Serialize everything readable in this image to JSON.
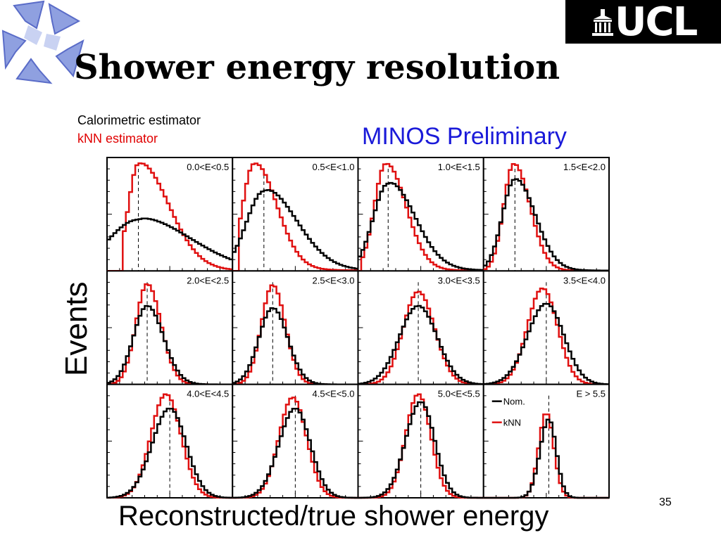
{
  "slide": {
    "title": "Shower energy resolution",
    "legend_top": [
      "Calorimetric estimator",
      "kNN estimator"
    ],
    "preliminary": "MINOS Preliminary",
    "page_number": "35",
    "logo_text": "UCL"
  },
  "colors": {
    "nominal": "#000000",
    "knn": "#e01010",
    "preliminary": "#1a1ad9",
    "ucl_logo_bg": "#000000"
  },
  "chart_data": {
    "type": "line",
    "xlabel": "Reconstructed/true shower energy",
    "ylabel": "Events",
    "grid": false,
    "legend": [
      "Nom.",
      "kNN"
    ],
    "panels": [
      {
        "label": "0.0<E<0.5",
        "nom": {
          "peak": 0.25,
          "sigma_l": 0.24,
          "sigma_r": 0.42,
          "height": 0.47,
          "tail": 0.05
        },
        "knn": {
          "peak": 0.25,
          "sigma_l": 0.08,
          "sigma_r": 0.24,
          "height": 0.98,
          "tail": 0.03,
          "start": 0.12
        }
      },
      {
        "label": "0.5<E<1.0",
        "nom": {
          "peak": 0.25,
          "sigma_l": 0.14,
          "sigma_r": 0.26,
          "height": 0.73,
          "tail": 0.05
        },
        "knn": {
          "peak": 0.17,
          "sigma_l": 0.09,
          "sigma_r": 0.18,
          "height": 0.98,
          "tail": 0.03,
          "start": 0.04
        }
      },
      {
        "label": "1.0<E<1.5",
        "nom": {
          "peak": 0.24,
          "sigma_l": 0.12,
          "sigma_r": 0.21,
          "height": 0.8,
          "tail": 0.04
        },
        "knn": {
          "peak": 0.22,
          "sigma_l": 0.09,
          "sigma_r": 0.16,
          "height": 0.98,
          "tail": 0.02,
          "start": 0.02
        }
      },
      {
        "label": "1.5<E<2.0",
        "nom": {
          "peak": 0.25,
          "sigma_l": 0.1,
          "sigma_r": 0.16,
          "height": 0.84,
          "tail": 0.02
        },
        "knn": {
          "peak": 0.24,
          "sigma_l": 0.08,
          "sigma_r": 0.13,
          "height": 0.98,
          "tail": 0.01,
          "start": 0.0
        }
      },
      {
        "label": "2.0<E<2.5",
        "nom": {
          "peak": 0.32,
          "sigma_l": 0.11,
          "sigma_r": 0.13,
          "height": 0.72,
          "tail": 0.0
        },
        "knn": {
          "peak": 0.32,
          "sigma_l": 0.09,
          "sigma_r": 0.11,
          "height": 0.92,
          "tail": 0.0,
          "start": 0.0
        }
      },
      {
        "label": "2.5<E<3.0",
        "nom": {
          "peak": 0.32,
          "sigma_l": 0.11,
          "sigma_r": 0.12,
          "height": 0.7,
          "tail": 0.0
        },
        "knn": {
          "peak": 0.32,
          "sigma_l": 0.09,
          "sigma_r": 0.1,
          "height": 0.91,
          "tail": 0.0,
          "start": 0.0
        }
      },
      {
        "label": "3.0<E<3.5",
        "nom": {
          "peak": 0.48,
          "sigma_l": 0.15,
          "sigma_r": 0.15,
          "height": 0.72,
          "tail": 0.0
        },
        "knn": {
          "peak": 0.48,
          "sigma_l": 0.12,
          "sigma_r": 0.13,
          "height": 0.85,
          "tail": 0.0,
          "start": 0.0
        }
      },
      {
        "label": "3.5<E<4.0",
        "nom": {
          "peak": 0.5,
          "sigma_l": 0.15,
          "sigma_r": 0.14,
          "height": 0.74,
          "tail": 0.0
        },
        "knn": {
          "peak": 0.47,
          "sigma_l": 0.12,
          "sigma_r": 0.12,
          "height": 0.88,
          "tail": 0.0,
          "start": 0.0
        }
      },
      {
        "label": "4.0<E<4.5",
        "nom": {
          "peak": 0.5,
          "sigma_l": 0.14,
          "sigma_r": 0.13,
          "height": 0.82,
          "tail": 0.0
        },
        "knn": {
          "peak": 0.47,
          "sigma_l": 0.12,
          "sigma_r": 0.12,
          "height": 0.95,
          "tail": 0.0,
          "start": 0.0
        }
      },
      {
        "label": "4.5<E<5.0",
        "nom": {
          "peak": 0.5,
          "sigma_l": 0.13,
          "sigma_r": 0.12,
          "height": 0.82,
          "tail": 0.0
        },
        "knn": {
          "peak": 0.48,
          "sigma_l": 0.11,
          "sigma_r": 0.11,
          "height": 0.92,
          "tail": 0.0,
          "start": 0.0
        }
      },
      {
        "label": "5.0<E<5.5",
        "nom": {
          "peak": 0.5,
          "sigma_l": 0.12,
          "sigma_r": 0.11,
          "height": 0.88,
          "tail": 0.0
        },
        "knn": {
          "peak": 0.48,
          "sigma_l": 0.1,
          "sigma_r": 0.1,
          "height": 0.95,
          "tail": 0.0,
          "start": 0.0
        }
      },
      {
        "label": "E > 5.5",
        "nom": {
          "peak": 0.52,
          "sigma_l": 0.07,
          "sigma_r": 0.06,
          "height": 0.72,
          "tail": 0.0
        },
        "knn": {
          "peak": 0.5,
          "sigma_l": 0.06,
          "sigma_r": 0.06,
          "height": 0.78,
          "tail": 0.0,
          "start": 0.0
        }
      }
    ]
  }
}
